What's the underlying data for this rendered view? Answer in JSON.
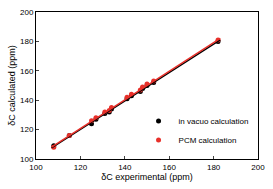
{
  "chart_data": {
    "type": "scatter",
    "xlabel": "δC experimental (ppm)",
    "ylabel": "δC calculated (ppm)",
    "xlim": [
      100,
      200
    ],
    "xticks": [
      100,
      120,
      140,
      160,
      180,
      200
    ],
    "ylim": [
      100,
      200
    ],
    "yticks": [
      100,
      120,
      140,
      160,
      180,
      200
    ],
    "grid": false,
    "legend": "lower right",
    "series": [
      {
        "name": "in vacuo calculation",
        "color": "#000000",
        "marker": "circle",
        "x": [
          108,
          115,
          125,
          127,
          131,
          133,
          134,
          141,
          143,
          147,
          148,
          150,
          153,
          182
        ],
        "values": [
          109,
          116,
          124,
          127,
          131,
          132,
          134,
          141,
          143,
          146,
          148,
          150,
          152,
          180
        ]
      },
      {
        "name": "PCM calculation",
        "color": "#e8302a",
        "marker": "circle",
        "x": [
          108,
          115,
          125,
          127,
          131,
          133,
          134,
          141,
          143,
          147,
          148,
          150,
          153,
          182
        ],
        "values": [
          108,
          116,
          126,
          128,
          132,
          133,
          135,
          142,
          144,
          147,
          149,
          151,
          153,
          181
        ]
      },
      {
        "type": "line",
        "color": "#000000",
        "line_style": "solid",
        "x": [
          107,
          183
        ],
        "values": [
          107.5,
          181
        ]
      },
      {
        "type": "line",
        "color": "#e8302a",
        "line_style": "solid",
        "x": [
          107,
          183
        ],
        "values": [
          108,
          182
        ]
      }
    ]
  }
}
